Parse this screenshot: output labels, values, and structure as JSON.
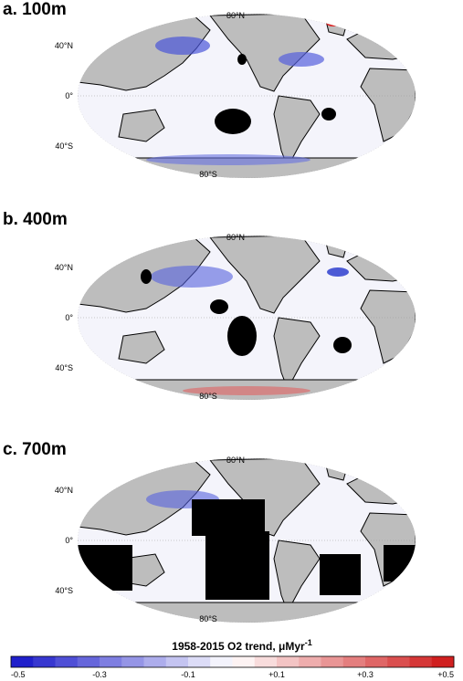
{
  "panels": [
    {
      "label": "a. 100m",
      "lat_labels": [
        "80°N",
        "40°N",
        "0°",
        "40°S",
        "80°S"
      ]
    },
    {
      "label": "b. 400m",
      "lat_labels": [
        "80°N",
        "40°N",
        "0°",
        "40°S",
        "80°S"
      ]
    },
    {
      "label": "c. 700m",
      "lat_labels": [
        "80°N",
        "40°N",
        "0°",
        "40°S",
        "80°S"
      ]
    }
  ],
  "colorbar": {
    "title": "1958-2015 O2 trend, μMyr",
    "title_superscript": "-1",
    "ticks": [
      "-0.5",
      "-0.3",
      "-0.1",
      "+0.1",
      "+0.3",
      "+0.5"
    ]
  }
}
